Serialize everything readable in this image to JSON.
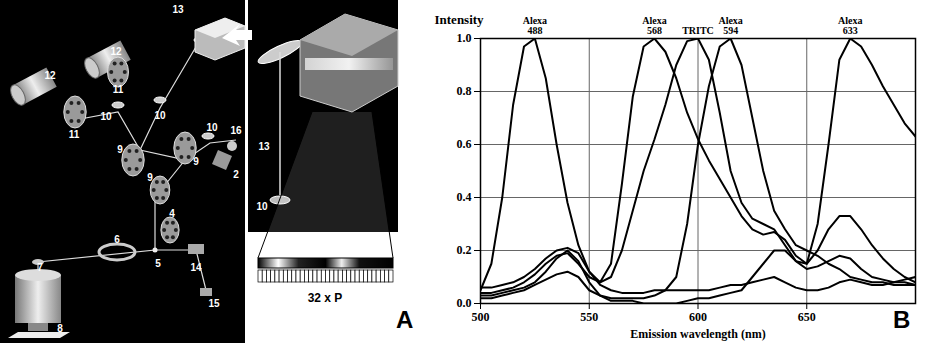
{
  "panel_a": {
    "label": "A",
    "callouts": [
      "13",
      "12",
      "12",
      "11",
      "11",
      "10",
      "10",
      "10",
      "9",
      "9",
      "9",
      "16",
      "2",
      "4",
      "5",
      "6",
      "7",
      "8",
      "14",
      "15"
    ],
    "inset_callouts": [
      "13",
      "10"
    ],
    "detector_label": "32 x P"
  },
  "panel_b": {
    "label": "B"
  },
  "chart_data": {
    "type": "line",
    "x_label": "Emission wavelength (nm)",
    "y_label": "Intensity",
    "x": [
      500,
      505,
      510,
      515,
      520,
      525,
      530,
      535,
      540,
      545,
      550,
      555,
      560,
      565,
      570,
      575,
      580,
      585,
      590,
      595,
      600,
      605,
      610,
      615,
      620,
      625,
      630,
      635,
      640,
      645,
      650,
      655,
      660,
      665,
      670,
      675,
      680,
      685,
      690,
      695,
      700
    ],
    "series": [
      {
        "name": "Alexa 488",
        "color": "#000000",
        "values": [
          0.05,
          0.15,
          0.4,
          0.75,
          0.97,
          1.0,
          0.85,
          0.6,
          0.38,
          0.22,
          0.12,
          0.07,
          0.05,
          0.04,
          0.04,
          0.04,
          0.05,
          0.05,
          0.05,
          0.05,
          0.05,
          0.05,
          0.06,
          0.07,
          0.07,
          0.08,
          0.09,
          0.1,
          0.08,
          0.06,
          0.05,
          0.05,
          0.06,
          0.08,
          0.09,
          0.08,
          0.07,
          0.07,
          0.08,
          0.09,
          0.1
        ]
      },
      {
        "name": "Alexa 568",
        "color": "#000000",
        "values": [
          0.06,
          0.06,
          0.07,
          0.08,
          0.1,
          0.13,
          0.17,
          0.2,
          0.21,
          0.19,
          0.12,
          0.08,
          0.15,
          0.45,
          0.78,
          0.97,
          1.0,
          0.95,
          0.85,
          0.72,
          0.62,
          0.54,
          0.47,
          0.4,
          0.33,
          0.28,
          0.26,
          0.27,
          0.24,
          0.18,
          0.15,
          0.2,
          0.28,
          0.33,
          0.33,
          0.28,
          0.22,
          0.17,
          0.13,
          0.1,
          0.08
        ]
      },
      {
        "name": "TRITC",
        "color": "#000000",
        "values": [
          0.04,
          0.04,
          0.05,
          0.06,
          0.08,
          0.11,
          0.15,
          0.18,
          0.19,
          0.15,
          0.1,
          0.08,
          0.1,
          0.2,
          0.35,
          0.5,
          0.62,
          0.75,
          0.9,
          0.99,
          1.0,
          0.92,
          0.72,
          0.5,
          0.38,
          0.32,
          0.3,
          0.28,
          0.22,
          0.16,
          0.13,
          0.14,
          0.16,
          0.18,
          0.17,
          0.13,
          0.1,
          0.09,
          0.08,
          0.08,
          0.07
        ]
      },
      {
        "name": "Alexa 594",
        "color": "#000000",
        "values": [
          0.02,
          0.02,
          0.03,
          0.04,
          0.05,
          0.07,
          0.09,
          0.11,
          0.12,
          0.1,
          0.05,
          0.03,
          0.02,
          0.02,
          0.02,
          0.02,
          0.03,
          0.05,
          0.1,
          0.3,
          0.6,
          0.82,
          0.97,
          1.0,
          0.9,
          0.7,
          0.5,
          0.35,
          0.28,
          0.22,
          0.2,
          0.18,
          0.15,
          0.13,
          0.1,
          0.09,
          0.08,
          0.08,
          0.07,
          0.07,
          0.07
        ]
      },
      {
        "name": "Alexa 633",
        "color": "#000000",
        "values": [
          0.03,
          0.03,
          0.04,
          0.05,
          0.06,
          0.08,
          0.12,
          0.17,
          0.2,
          0.16,
          0.08,
          0.03,
          0.01,
          0.01,
          0.01,
          0.0,
          0.0,
          0.0,
          0.0,
          0.01,
          0.02,
          0.02,
          0.03,
          0.04,
          0.05,
          0.1,
          0.15,
          0.2,
          0.2,
          0.16,
          0.15,
          0.3,
          0.6,
          0.92,
          1.0,
          0.97,
          0.9,
          0.82,
          0.75,
          0.68,
          0.63
        ]
      }
    ],
    "xlim": [
      500,
      700
    ],
    "xticks": [
      500,
      550,
      600,
      650
    ],
    "ylim": [
      0,
      1
    ],
    "yticks": [
      {
        "value": 0,
        "label": "0.0"
      },
      0.2,
      0.4,
      0.6,
      0.8,
      {
        "value": 1,
        "label": "1.0"
      }
    ],
    "grid": true
  }
}
